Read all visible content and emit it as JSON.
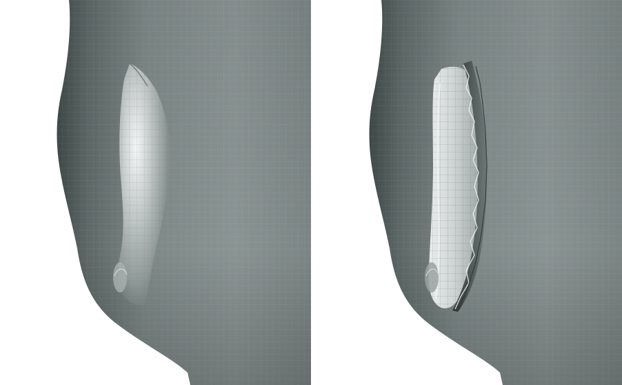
{
  "figure": {
    "panels": [
      {
        "id": "left",
        "view": "smooth-mesh-surface"
      },
      {
        "id": "right",
        "view": "cracked-mesh-surface"
      }
    ],
    "colors": {
      "background": "#ffffff",
      "mesh_base": "#7a8584",
      "mesh_dark": "#4a5453",
      "mesh_light": "#c8cccb",
      "highlight": "#f2f4f4",
      "grid_line": "#9aa3a2"
    }
  }
}
